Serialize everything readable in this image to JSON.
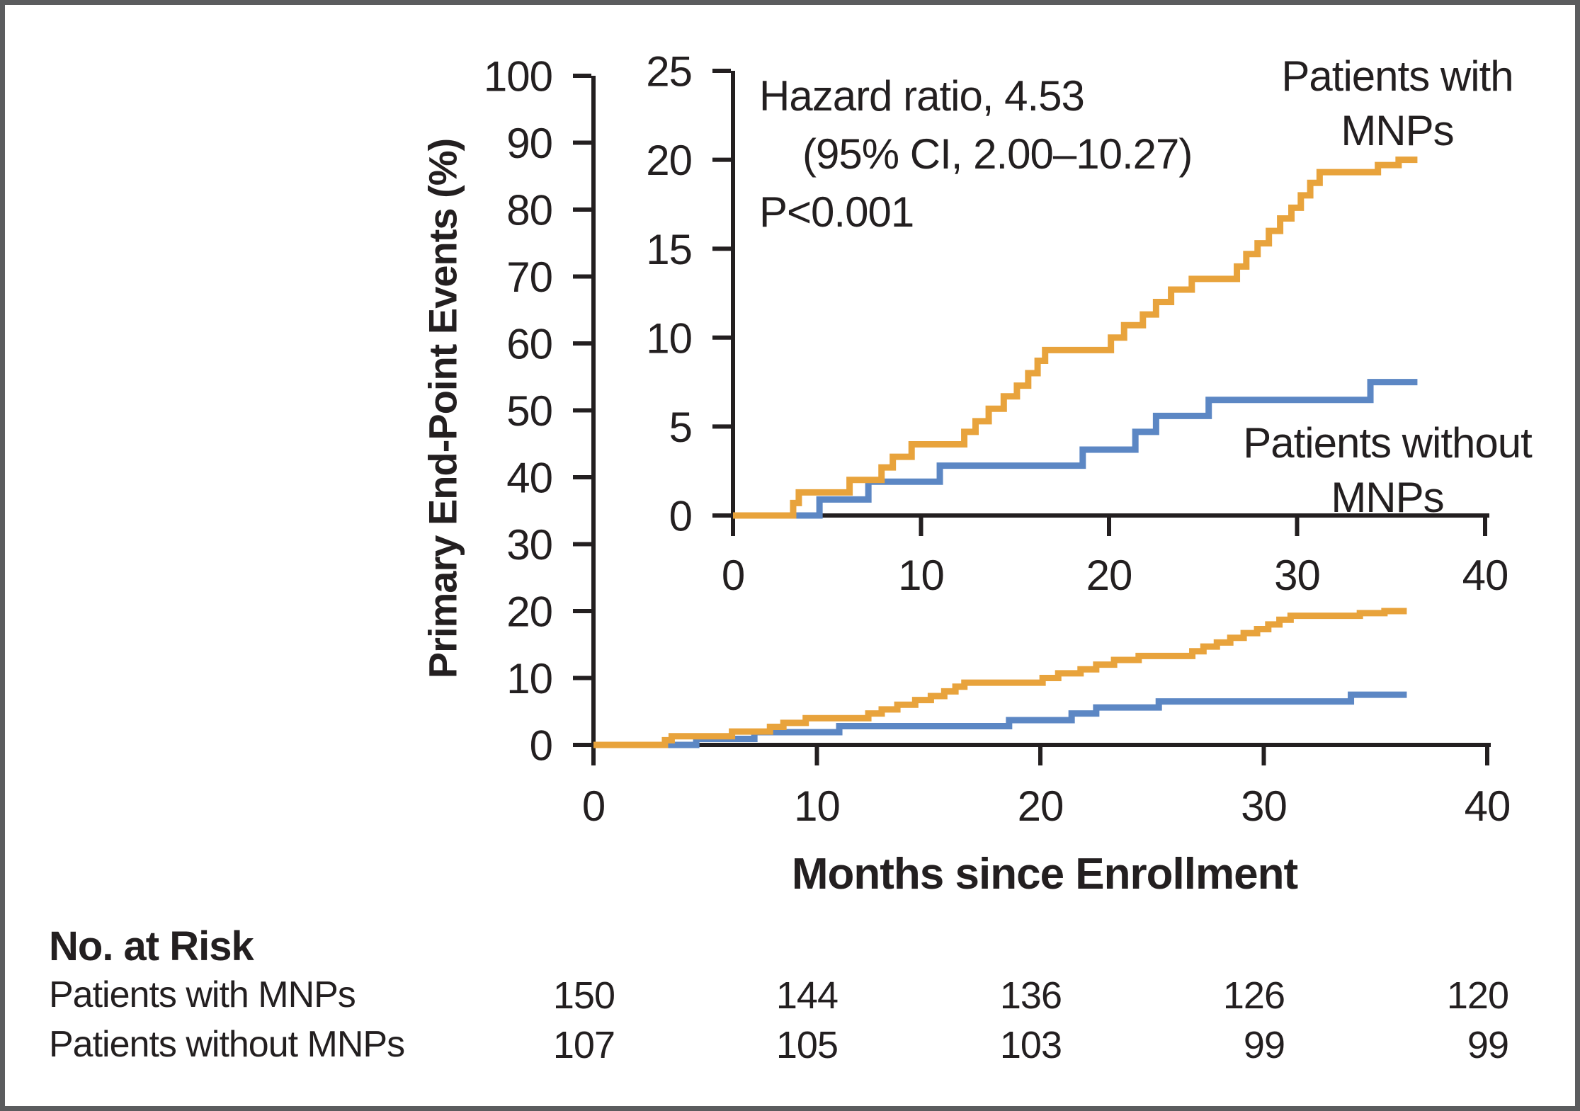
{
  "figure": {
    "background": "#FFFFFF",
    "border_color": "#5B5C5E"
  },
  "colors": {
    "with_mnps": "#E8A33C",
    "without_mnps": "#5C87C4",
    "axis": "#231F20"
  },
  "annotation": {
    "line1": "Hazard ratio, 4.53",
    "line2": "(95% CI, 2.00–10.27)",
    "line3": "P<0.001"
  },
  "curve_labels": {
    "with_mnps": [
      "Patients with",
      "MNPs"
    ],
    "without_mnps": [
      "Patients without",
      "MNPs"
    ]
  },
  "main_axis": {
    "ylabel": "Primary End-Point Events (%)",
    "xlabel": "Months since Enrollment",
    "yticks": [
      0,
      10,
      20,
      30,
      40,
      50,
      60,
      70,
      80,
      90,
      100
    ],
    "xticks": [
      0,
      10,
      20,
      30,
      40
    ],
    "ylim": [
      0,
      100
    ],
    "xlim": [
      0,
      40
    ]
  },
  "inset_axis": {
    "yticks": [
      0,
      5,
      10,
      15,
      20,
      25
    ],
    "xticks": [
      0,
      10,
      20,
      30,
      40
    ],
    "ylim": [
      0,
      25
    ],
    "xlim": [
      0,
      40
    ]
  },
  "chart_data": {
    "type": "line",
    "subtype": "kaplan-meier-cumulative-incidence-step",
    "title": "",
    "xlabel": "Months since Enrollment",
    "ylabel": "Primary End-Point Events (%)",
    "x_unit": "months",
    "y_unit": "percent",
    "end_time": 36.4,
    "grid": false,
    "legend_position": "inline-labels",
    "series": [
      {
        "name": "Patients with MNPs",
        "color_key": "with_mnps",
        "points": [
          [
            0,
            0
          ],
          [
            3.2,
            0.7
          ],
          [
            3.5,
            1.3
          ],
          [
            6.2,
            2.0
          ],
          [
            7.9,
            2.7
          ],
          [
            8.5,
            3.3
          ],
          [
            9.5,
            4.0
          ],
          [
            12.3,
            4.7
          ],
          [
            12.9,
            5.3
          ],
          [
            13.6,
            6.0
          ],
          [
            14.4,
            6.7
          ],
          [
            15.1,
            7.3
          ],
          [
            15.7,
            8.0
          ],
          [
            16.2,
            8.7
          ],
          [
            16.6,
            9.3
          ],
          [
            20.1,
            10.0
          ],
          [
            20.8,
            10.7
          ],
          [
            21.8,
            11.3
          ],
          [
            22.5,
            12.0
          ],
          [
            23.3,
            12.7
          ],
          [
            24.4,
            13.3
          ],
          [
            26.8,
            14.0
          ],
          [
            27.3,
            14.7
          ],
          [
            27.9,
            15.3
          ],
          [
            28.5,
            16.0
          ],
          [
            29.1,
            16.7
          ],
          [
            29.7,
            17.3
          ],
          [
            30.2,
            18.0
          ],
          [
            30.7,
            18.7
          ],
          [
            31.2,
            19.3
          ],
          [
            34.3,
            19.7
          ],
          [
            35.4,
            20.0
          ]
        ]
      },
      {
        "name": "Patients without MNPs",
        "color_key": "without_mnps",
        "points": [
          [
            0,
            0
          ],
          [
            4.6,
            0.9
          ],
          [
            7.2,
            1.9
          ],
          [
            11.0,
            2.8
          ],
          [
            18.6,
            3.7
          ],
          [
            21.4,
            4.7
          ],
          [
            22.5,
            5.6
          ],
          [
            25.3,
            6.5
          ],
          [
            33.9,
            7.5
          ]
        ]
      }
    ]
  },
  "risk_table": {
    "title": "No. at Risk",
    "rows": [
      {
        "label": "Patients with MNPs",
        "values": [
          "150",
          "144",
          "136",
          "126",
          "120"
        ]
      },
      {
        "label": "Patients without MNPs",
        "values": [
          "107",
          "105",
          "103",
          "99",
          "99"
        ]
      }
    ]
  }
}
